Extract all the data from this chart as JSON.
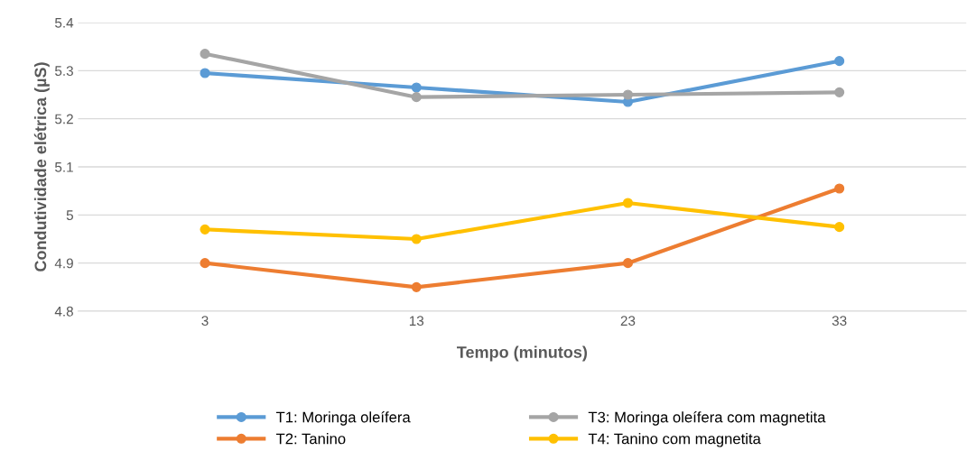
{
  "chart_data": {
    "type": "line",
    "xlabel": "Tempo (minutos)",
    "ylabel": "Condutividade elétrica (µS)",
    "categories": [
      "3",
      "13",
      "23",
      "33"
    ],
    "series": [
      {
        "name": "T1: Moringa oleífera",
        "color": "#5b9bd5",
        "values": [
          5.295,
          5.265,
          5.235,
          5.32
        ]
      },
      {
        "name": "T2: Tanino",
        "color": "#ed7d31",
        "values": [
          4.9,
          4.85,
          4.9,
          5.055
        ]
      },
      {
        "name": "T3: Moringa oleífera com magnetita",
        "color": "#a5a5a5",
        "values": [
          5.335,
          5.245,
          5.25,
          5.255
        ]
      },
      {
        "name": "T4: Tanino com magnetita",
        "color": "#ffc000",
        "values": [
          4.97,
          4.95,
          5.025,
          4.975
        ]
      }
    ],
    "ylim": [
      4.8,
      5.4
    ],
    "yticks": [
      4.8,
      4.9,
      5,
      5.1,
      5.2,
      5.3,
      5.4
    ],
    "grid": "y",
    "legend": "bottom",
    "marker": "circle",
    "line_style": "solid"
  }
}
